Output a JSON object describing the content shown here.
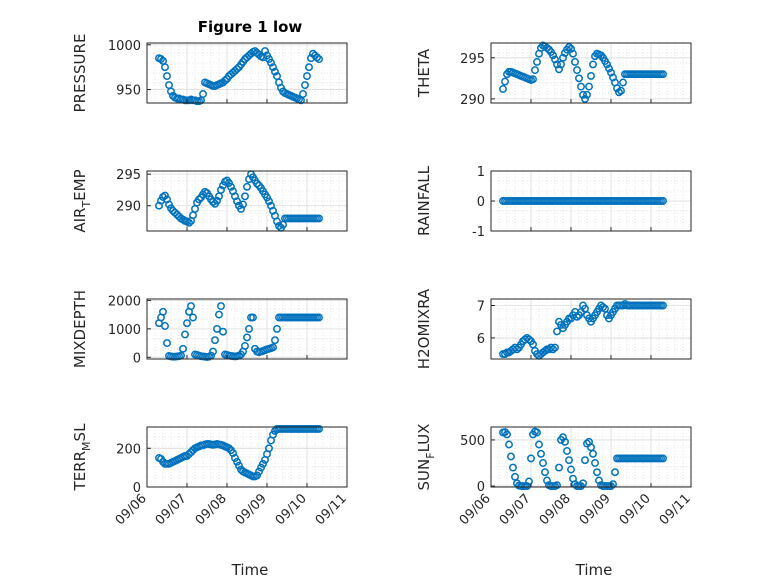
{
  "figure": {
    "title": "Figure 1 low",
    "xlabel": "Time",
    "x_tick_labels": [
      "09/06",
      "09/07",
      "09/08",
      "09/09",
      "09/10",
      "09/11"
    ],
    "marker_color": "#0072bd"
  },
  "chart_data": [
    {
      "type": "scatter",
      "ylabel": "PRESSURE",
      "ylim": [
        935,
        1002
      ],
      "yticks": [
        950,
        1000
      ],
      "xlim": [
        0,
        5
      ],
      "grid": true,
      "x": [
        0.3,
        0.35,
        0.4,
        0.45,
        0.5,
        0.55,
        0.6,
        0.65,
        0.7,
        0.75,
        0.8,
        0.85,
        0.9,
        0.95,
        1.0,
        1.05,
        1.1,
        1.15,
        1.2,
        1.25,
        1.3,
        1.35,
        1.4,
        1.45,
        1.5,
        1.55,
        1.6,
        1.65,
        1.7,
        1.75,
        1.8,
        1.85,
        1.9,
        1.95,
        2.0,
        2.05,
        2.1,
        2.15,
        2.2,
        2.25,
        2.3,
        2.35,
        2.4,
        2.45,
        2.5,
        2.55,
        2.6,
        2.65,
        2.7,
        2.75,
        2.8,
        2.85,
        2.9,
        2.95,
        3.0,
        3.05,
        3.1,
        3.15,
        3.2,
        3.25,
        3.3,
        3.35,
        3.4,
        3.45,
        3.5,
        3.55,
        3.6,
        3.65,
        3.7,
        3.75,
        3.8,
        3.85,
        3.9,
        3.95,
        4.0,
        4.05,
        4.1,
        4.15,
        4.2,
        4.25,
        4.3
      ],
      "y": [
        985,
        984,
        982,
        975,
        965,
        955,
        948,
        943,
        941,
        940,
        940,
        939,
        939,
        938,
        938,
        938,
        939,
        938,
        938,
        937,
        937,
        938,
        945,
        958,
        957,
        956,
        955,
        954,
        954,
        955,
        956,
        957,
        958,
        960,
        962,
        965,
        967,
        969,
        971,
        973,
        975,
        978,
        981,
        984,
        986,
        988,
        990,
        992,
        993,
        991,
        989,
        987,
        986,
        993,
        988,
        984,
        980,
        975,
        970,
        965,
        958,
        952,
        948,
        946,
        945,
        944,
        943,
        942,
        941,
        940,
        939,
        938,
        945,
        955,
        965,
        975,
        985,
        990,
        988,
        986,
        984
      ],
      "_note": "values read from plot"
    },
    {
      "type": "scatter",
      "ylabel": "THETA",
      "ylim": [
        289.5,
        296.8
      ],
      "yticks": [
        290,
        295
      ],
      "xlim": [
        0,
        5
      ],
      "grid": true,
      "x": [
        0.3,
        0.35,
        0.4,
        0.45,
        0.5,
        0.55,
        0.6,
        0.65,
        0.7,
        0.75,
        0.8,
        0.85,
        0.9,
        0.95,
        1.0,
        1.05,
        1.1,
        1.15,
        1.2,
        1.25,
        1.3,
        1.35,
        1.4,
        1.45,
        1.5,
        1.55,
        1.6,
        1.65,
        1.7,
        1.75,
        1.8,
        1.85,
        1.9,
        1.95,
        2.0,
        2.05,
        2.1,
        2.15,
        2.2,
        2.25,
        2.3,
        2.35,
        2.4,
        2.45,
        2.5,
        2.55,
        2.6,
        2.65,
        2.7,
        2.75,
        2.8,
        2.85,
        2.9,
        2.95,
        3.0,
        3.05,
        3.1,
        3.15,
        3.2,
        3.25,
        3.3,
        3.35,
        3.4,
        3.45,
        3.5,
        3.55,
        3.6,
        3.65,
        3.7,
        3.75,
        3.8,
        3.85,
        3.9,
        3.95,
        4.0,
        4.05,
        4.1,
        4.15,
        4.2,
        4.25,
        4.3
      ],
      "y": [
        291.2,
        292.1,
        293.0,
        293.3,
        293.3,
        293.2,
        293.1,
        293.0,
        292.9,
        292.8,
        292.7,
        292.6,
        292.5,
        292.4,
        292.3,
        292.4,
        293.5,
        294.5,
        295.5,
        296.2,
        296.5,
        296.4,
        296.2,
        296.0,
        295.7,
        295.3,
        294.8,
        294.2,
        293.6,
        294.2,
        295.0,
        295.6,
        296.0,
        296.3,
        296.1,
        295.5,
        294.5,
        293.5,
        292.5,
        291.5,
        290.5,
        290.0,
        290.5,
        291.5,
        292.8,
        294.2,
        295.2,
        295.5,
        295.4,
        295.3,
        295.0,
        294.6,
        294.2,
        293.7,
        293.2,
        292.6,
        292.0,
        291.3,
        290.8,
        291.0,
        292.0,
        293.0,
        293.0,
        293.0,
        293.0,
        293.0,
        293.0,
        293.0,
        293.0,
        293.0,
        293.0,
        293.0,
        293.0,
        293.0,
        293.0,
        293.0,
        293.0,
        293.0,
        293.0,
        293.0,
        293.0
      ]
    },
    {
      "type": "scatter",
      "ylabel": "AIR_TEMP",
      "ylim": [
        286,
        295.5
      ],
      "yticks": [
        290,
        295
      ],
      "xlim": [
        0,
        5
      ],
      "grid": true,
      "x": [
        0.3,
        0.35,
        0.4,
        0.45,
        0.5,
        0.55,
        0.6,
        0.65,
        0.7,
        0.75,
        0.8,
        0.85,
        0.9,
        0.95,
        1.0,
        1.05,
        1.1,
        1.15,
        1.2,
        1.25,
        1.3,
        1.35,
        1.4,
        1.45,
        1.5,
        1.55,
        1.6,
        1.65,
        1.7,
        1.75,
        1.8,
        1.85,
        1.9,
        1.95,
        2.0,
        2.05,
        2.1,
        2.15,
        2.2,
        2.25,
        2.3,
        2.35,
        2.4,
        2.45,
        2.5,
        2.55,
        2.6,
        2.65,
        2.7,
        2.75,
        2.8,
        2.85,
        2.9,
        2.95,
        3.0,
        3.05,
        3.1,
        3.15,
        3.2,
        3.25,
        3.3,
        3.35,
        3.4,
        3.45,
        3.5,
        3.55,
        3.6,
        3.65,
        3.7,
        3.75,
        3.8,
        3.85,
        3.9,
        3.95,
        4.0,
        4.05,
        4.1,
        4.15,
        4.2,
        4.25,
        4.3
      ],
      "y": [
        290.0,
        290.8,
        291.4,
        291.6,
        291.0,
        290.2,
        289.6,
        289.2,
        288.9,
        288.6,
        288.3,
        288.0,
        287.8,
        287.6,
        287.5,
        287.3,
        287.6,
        288.5,
        289.5,
        290.5,
        291.0,
        291.3,
        291.8,
        292.2,
        292.0,
        291.5,
        291.0,
        290.6,
        290.3,
        290.8,
        291.5,
        292.5,
        293.2,
        293.8,
        294.0,
        293.6,
        293.0,
        292.3,
        291.5,
        290.7,
        290.0,
        289.5,
        290.2,
        291.5,
        293.0,
        294.2,
        295.0,
        294.5,
        294.0,
        293.5,
        293.2,
        292.8,
        292.3,
        291.8,
        291.3,
        290.7,
        290.0,
        289.2,
        288.4,
        287.5,
        286.8,
        286.5,
        287.0,
        288.0,
        288.0,
        288.0,
        288.0,
        288.0,
        288.0,
        288.0,
        288.0,
        288.0,
        288.0,
        288.0,
        288.0,
        288.0,
        288.0,
        288.0,
        288.0,
        288.0,
        288.0
      ]
    },
    {
      "type": "scatter",
      "ylabel": "RAINFALL",
      "ylim": [
        -1,
        1
      ],
      "yticks": [
        -1,
        0,
        1
      ],
      "xlim": [
        0,
        5
      ],
      "grid": true,
      "x": [
        0.3,
        0.35,
        0.4,
        0.45,
        0.5,
        0.55,
        0.6,
        0.65,
        0.7,
        0.75,
        0.8,
        0.85,
        0.9,
        0.95,
        1.0,
        1.05,
        1.1,
        1.15,
        1.2,
        1.25,
        1.3,
        1.35,
        1.4,
        1.45,
        1.5,
        1.55,
        1.6,
        1.65,
        1.7,
        1.75,
        1.8,
        1.85,
        1.9,
        1.95,
        2.0,
        2.05,
        2.1,
        2.15,
        2.2,
        2.25,
        2.3,
        2.35,
        2.4,
        2.45,
        2.5,
        2.55,
        2.6,
        2.65,
        2.7,
        2.75,
        2.8,
        2.85,
        2.9,
        2.95,
        3.0,
        3.05,
        3.1,
        3.15,
        3.2,
        3.25,
        3.3,
        3.35,
        3.4,
        3.45,
        3.5,
        3.55,
        3.6,
        3.65,
        3.7,
        3.75,
        3.8,
        3.85,
        3.9,
        3.95,
        4.0,
        4.05,
        4.1,
        4.15,
        4.2,
        4.25,
        4.3
      ],
      "y": [
        0,
        0,
        0,
        0,
        0,
        0,
        0,
        0,
        0,
        0,
        0,
        0,
        0,
        0,
        0,
        0,
        0,
        0,
        0,
        0,
        0,
        0,
        0,
        0,
        0,
        0,
        0,
        0,
        0,
        0,
        0,
        0,
        0,
        0,
        0,
        0,
        0,
        0,
        0,
        0,
        0,
        0,
        0,
        0,
        0,
        0,
        0,
        0,
        0,
        0,
        0,
        0,
        0,
        0,
        0,
        0,
        0,
        0,
        0,
        0,
        0,
        0,
        0,
        0,
        0,
        0,
        0,
        0,
        0,
        0,
        0,
        0,
        0,
        0,
        0,
        0,
        0,
        0,
        0,
        0,
        0
      ]
    },
    {
      "type": "scatter",
      "ylabel": "MIXDEPTH",
      "ylim": [
        -60,
        2050
      ],
      "yticks": [
        0,
        1000,
        2000
      ],
      "xlim": [
        0,
        5
      ],
      "grid": true,
      "x": [
        0.3,
        0.35,
        0.4,
        0.45,
        0.5,
        0.55,
        0.6,
        0.65,
        0.7,
        0.75,
        0.8,
        0.85,
        0.9,
        0.95,
        1.0,
        1.05,
        1.1,
        1.15,
        1.2,
        1.25,
        1.3,
        1.35,
        1.4,
        1.45,
        1.5,
        1.55,
        1.6,
        1.65,
        1.7,
        1.75,
        1.8,
        1.85,
        1.9,
        1.95,
        2.0,
        2.05,
        2.1,
        2.15,
        2.2,
        2.25,
        2.3,
        2.35,
        2.4,
        2.45,
        2.5,
        2.55,
        2.6,
        2.65,
        2.7,
        2.75,
        2.8,
        2.85,
        2.9,
        2.95,
        3.0,
        3.05,
        3.1,
        3.15,
        3.2,
        3.25,
        3.3,
        3.35,
        3.4,
        3.45,
        3.5,
        3.55,
        3.6,
        3.65,
        3.7,
        3.75,
        3.8,
        3.85,
        3.9,
        3.95,
        4.0,
        4.05,
        4.1,
        4.15,
        4.2,
        4.25,
        4.3
      ],
      "y": [
        1200,
        1400,
        1600,
        1100,
        500,
        50,
        30,
        20,
        20,
        30,
        40,
        60,
        300,
        800,
        1200,
        1600,
        1800,
        1400,
        100,
        80,
        60,
        40,
        30,
        20,
        10,
        20,
        60,
        200,
        600,
        1000,
        1500,
        1800,
        900,
        100,
        80,
        60,
        50,
        40,
        30,
        40,
        60,
        100,
        200,
        400,
        700,
        1000,
        1400,
        1400,
        300,
        200,
        180,
        200,
        220,
        250,
        280,
        300,
        320,
        350,
        600,
        1000,
        1400,
        1400,
        1400,
        1400,
        1400,
        1400,
        1400,
        1400,
        1400,
        1400,
        1400,
        1400,
        1400,
        1400,
        1400,
        1400,
        1400,
        1400,
        1400,
        1400,
        1400
      ]
    },
    {
      "type": "scatter",
      "ylabel": "H2OMIXRA",
      "ylim": [
        5.35,
        7.2
      ],
      "yticks": [
        6,
        7
      ],
      "xlim": [
        0,
        5
      ],
      "grid": true,
      "x": [
        0.3,
        0.35,
        0.4,
        0.45,
        0.5,
        0.55,
        0.6,
        0.65,
        0.7,
        0.75,
        0.8,
        0.85,
        0.9,
        0.95,
        1.0,
        1.05,
        1.1,
        1.15,
        1.2,
        1.25,
        1.3,
        1.35,
        1.4,
        1.45,
        1.5,
        1.55,
        1.6,
        1.65,
        1.7,
        1.75,
        1.8,
        1.85,
        1.9,
        1.95,
        2.0,
        2.05,
        2.1,
        2.15,
        2.2,
        2.25,
        2.3,
        2.35,
        2.4,
        2.45,
        2.5,
        2.55,
        2.6,
        2.65,
        2.7,
        2.75,
        2.8,
        2.85,
        2.9,
        2.95,
        3.0,
        3.05,
        3.1,
        3.15,
        3.2,
        3.25,
        3.3,
        3.35,
        3.4,
        3.45,
        3.5,
        3.55,
        3.6,
        3.65,
        3.7,
        3.75,
        3.8,
        3.85,
        3.9,
        3.95,
        4.0,
        4.05,
        4.1,
        4.15,
        4.2,
        4.25,
        4.3
      ],
      "y": [
        5.5,
        5.5,
        5.55,
        5.55,
        5.6,
        5.65,
        5.7,
        5.65,
        5.7,
        5.8,
        5.9,
        5.95,
        6.0,
        5.95,
        5.9,
        5.8,
        5.6,
        5.5,
        5.45,
        5.5,
        5.55,
        5.6,
        5.65,
        5.65,
        5.7,
        5.65,
        5.7,
        6.2,
        6.5,
        6.4,
        6.3,
        6.4,
        6.5,
        6.6,
        6.6,
        6.7,
        6.8,
        6.65,
        6.7,
        6.8,
        7.0,
        6.9,
        6.7,
        6.6,
        6.5,
        6.6,
        6.7,
        6.8,
        6.9,
        7.0,
        6.95,
        6.9,
        6.7,
        6.6,
        6.7,
        6.8,
        6.9,
        7.0,
        7.0,
        7.0,
        7.0,
        7.05,
        7.0,
        7.0,
        7.0,
        7.0,
        7.0,
        7.0,
        7.0,
        7.0,
        7.0,
        7.0,
        7.0,
        7.0,
        7.0,
        7.0,
        7.0,
        7.0,
        7.0,
        7.0,
        7.0
      ]
    },
    {
      "type": "scatter",
      "ylabel": "TERR_MSL",
      "ylim": [
        0,
        310
      ],
      "yticks": [
        0,
        200
      ],
      "xlim": [
        0,
        5
      ],
      "grid": true,
      "x": [
        0.3,
        0.35,
        0.4,
        0.45,
        0.5,
        0.55,
        0.6,
        0.65,
        0.7,
        0.75,
        0.8,
        0.85,
        0.9,
        0.95,
        1.0,
        1.05,
        1.1,
        1.15,
        1.2,
        1.25,
        1.3,
        1.35,
        1.4,
        1.45,
        1.5,
        1.55,
        1.6,
        1.65,
        1.7,
        1.75,
        1.8,
        1.85,
        1.9,
        1.95,
        2.0,
        2.05,
        2.1,
        2.15,
        2.2,
        2.25,
        2.3,
        2.35,
        2.4,
        2.45,
        2.5,
        2.55,
        2.6,
        2.65,
        2.7,
        2.75,
        2.8,
        2.85,
        2.9,
        2.95,
        3.0,
        3.05,
        3.1,
        3.15,
        3.2,
        3.25,
        3.3,
        3.35,
        3.4,
        3.45,
        3.5,
        3.55,
        3.6,
        3.65,
        3.7,
        3.75,
        3.8,
        3.85,
        3.9,
        3.95,
        4.0,
        4.05,
        4.1,
        4.15,
        4.2,
        4.25,
        4.3
      ],
      "y": [
        150,
        145,
        130,
        120,
        120,
        120,
        125,
        130,
        135,
        140,
        145,
        150,
        155,
        160,
        160,
        170,
        180,
        190,
        200,
        205,
        210,
        215,
        215,
        220,
        222,
        222,
        220,
        218,
        220,
        222,
        220,
        218,
        215,
        210,
        205,
        200,
        190,
        175,
        150,
        130,
        110,
        90,
        80,
        75,
        70,
        65,
        60,
        55,
        55,
        60,
        80,
        100,
        120,
        140,
        170,
        200,
        240,
        270,
        290,
        300,
        300,
        300,
        300,
        300,
        300,
        300,
        300,
        300,
        300,
        300,
        300,
        300,
        300,
        300,
        300,
        300,
        300,
        300,
        300,
        300,
        300
      ]
    },
    {
      "type": "scatter",
      "ylabel": "SUN_FLUX",
      "ylim": [
        -10,
        640
      ],
      "yticks": [
        0,
        500
      ],
      "xlim": [
        0,
        5
      ],
      "grid": true,
      "x": [
        0.3,
        0.35,
        0.4,
        0.45,
        0.5,
        0.55,
        0.6,
        0.65,
        0.7,
        0.75,
        0.8,
        0.85,
        0.9,
        0.95,
        1.0,
        1.05,
        1.1,
        1.15,
        1.2,
        1.25,
        1.3,
        1.35,
        1.4,
        1.45,
        1.5,
        1.55,
        1.6,
        1.65,
        1.7,
        1.75,
        1.8,
        1.85,
        1.9,
        1.95,
        2.0,
        2.05,
        2.1,
        2.15,
        2.2,
        2.25,
        2.3,
        2.35,
        2.4,
        2.45,
        2.5,
        2.55,
        2.6,
        2.65,
        2.7,
        2.75,
        2.8,
        2.85,
        2.9,
        2.95,
        3.0,
        3.05,
        3.1,
        3.15,
        3.2,
        3.25,
        3.3,
        3.35,
        3.4,
        3.45,
        3.5,
        3.55,
        3.6,
        3.65,
        3.7,
        3.75,
        3.8,
        3.85,
        3.9,
        3.95,
        4.0,
        4.05,
        4.1,
        4.15,
        4.2,
        4.25,
        4.3
      ],
      "y": [
        580,
        585,
        560,
        450,
        320,
        200,
        100,
        30,
        5,
        0,
        0,
        0,
        0,
        50,
        300,
        560,
        590,
        580,
        450,
        350,
        250,
        150,
        60,
        10,
        0,
        0,
        0,
        10,
        200,
        500,
        530,
        480,
        380,
        280,
        180,
        80,
        20,
        0,
        0,
        0,
        30,
        280,
        460,
        480,
        420,
        350,
        250,
        150,
        60,
        10,
        0,
        0,
        0,
        0,
        0,
        20,
        150,
        300,
        300,
        300,
        300,
        300,
        300,
        300,
        300,
        300,
        300,
        300,
        300,
        300,
        300,
        300,
        300,
        300,
        300,
        300,
        300,
        300,
        300,
        300,
        300
      ]
    }
  ]
}
